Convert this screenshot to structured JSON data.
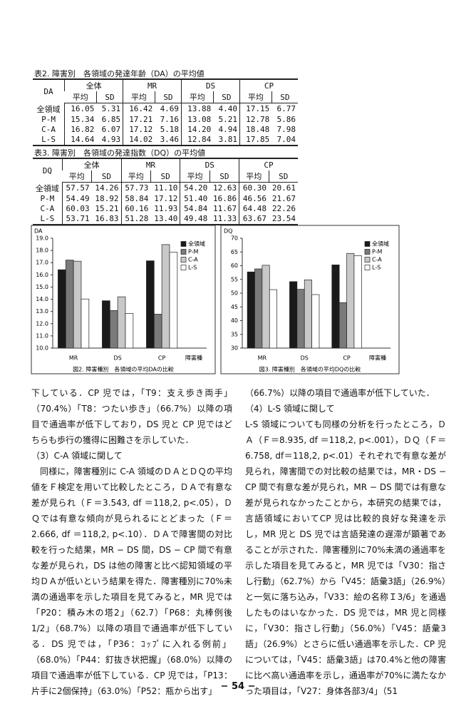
{
  "tables": [
    {
      "caption": "表2. 障害別　各領域の発達年齢（DA）の平均値",
      "corner": "DA",
      "groups": [
        "全体",
        "MR",
        "DS",
        "CP"
      ],
      "sub": [
        "平均",
        "SD"
      ],
      "rows": [
        [
          "全領域",
          "16.05",
          "5.31",
          "16.42",
          "4.69",
          "13.88",
          "4.40",
          "17.15",
          "6.77"
        ],
        [
          "P-M",
          "15.34",
          "6.85",
          "17.21",
          "7.16",
          "13.08",
          "5.21",
          "12.78",
          "5.86"
        ],
        [
          "C-A",
          "16.82",
          "6.07",
          "17.12",
          "5.18",
          "14.20",
          "4.94",
          "18.48",
          "7.98"
        ],
        [
          "L-S",
          "14.64",
          "4.93",
          "14.02",
          "3.46",
          "12.84",
          "3.81",
          "17.85",
          "7.04"
        ]
      ]
    },
    {
      "caption": "表3. 障害別　各領域の発達指数（DQ）の平均値",
      "corner": "DQ",
      "groups": [
        "全体",
        "MR",
        "DS",
        "CP"
      ],
      "sub": [
        "平均",
        "SD"
      ],
      "rows": [
        [
          "全領域",
          "57.57",
          "14.26",
          "57.73",
          "11.10",
          "54.20",
          "12.63",
          "60.30",
          "20.61"
        ],
        [
          "P-M",
          "54.49",
          "18.92",
          "58.84",
          "17.12",
          "51.40",
          "16.86",
          "46.56",
          "21.67"
        ],
        [
          "C-A",
          "60.03",
          "15.21",
          "60.16",
          "11.93",
          "54.84",
          "11.67",
          "64.48",
          "22.26"
        ],
        [
          "L-S",
          "53.71",
          "16.83",
          "51.28",
          "13.40",
          "49.48",
          "11.33",
          "63.67",
          "23.54"
        ]
      ]
    }
  ],
  "chart_data": [
    {
      "type": "bar",
      "title": "図2. 障害種別　各領域の平均DAの比較",
      "y_label": "DA",
      "x_label": "障害種",
      "categories": [
        "MR",
        "DS",
        "CP"
      ],
      "series": [
        {
          "name": "全領域",
          "color": "#1a1a1a",
          "values": [
            16.42,
            13.88,
            17.15
          ]
        },
        {
          "name": "P-M",
          "color": "#7a7a7a",
          "values": [
            17.21,
            13.08,
            12.78
          ]
        },
        {
          "name": "C-A",
          "color": "#c8c8c8",
          "values": [
            17.12,
            14.2,
            18.48
          ]
        },
        {
          "name": "L-S",
          "color": "#ffffff",
          "values": [
            14.02,
            12.84,
            17.85
          ]
        }
      ],
      "ylim": [
        10,
        19
      ],
      "yticks": [
        {
          "value": 10,
          "label": "10.0"
        },
        {
          "value": 11,
          "label": "11.0"
        },
        {
          "value": 12,
          "label": "12.0"
        },
        {
          "value": 13,
          "label": "13.0"
        },
        {
          "value": 14,
          "label": "14.0"
        },
        {
          "value": 15,
          "label": "15.0"
        },
        {
          "value": 16,
          "label": "16.0"
        },
        {
          "value": 17,
          "label": "17.0"
        },
        {
          "value": 18,
          "label": "18.0"
        },
        {
          "value": 19,
          "label": "19.0"
        }
      ],
      "legend": "top-right"
    },
    {
      "type": "bar",
      "title": "図3. 障害種別　各領域の平均DQの比較",
      "y_label": "DQ",
      "x_label": "障害種",
      "categories": [
        "MR",
        "DS",
        "CP"
      ],
      "series": [
        {
          "name": "全領域",
          "color": "#1a1a1a",
          "values": [
            57.73,
            54.2,
            60.3
          ]
        },
        {
          "name": "P-M",
          "color": "#7a7a7a",
          "values": [
            58.84,
            51.4,
            46.56
          ]
        },
        {
          "name": "C-A",
          "color": "#c8c8c8",
          "values": [
            60.16,
            54.84,
            64.48
          ]
        },
        {
          "name": "L-S",
          "color": "#ffffff",
          "values": [
            51.28,
            49.48,
            63.67
          ]
        }
      ],
      "ylim": [
        30,
        70
      ],
      "yticks": [
        30,
        35,
        40,
        45,
        50,
        55,
        60,
        65,
        70
      ],
      "legend": "top-right"
    }
  ],
  "body": {
    "left": [
      "下している．CP 児では，「T9：支え歩き両手」（70.4%）「T8：つたい歩き」（66.7%）以降の項目で通過率が低下しており，DS 児と CP 児ではどちらも歩行の獲得に困難さを示していた．",
      "（3）C-A 領域に関して",
      "同様に，障害種別に C-A 領域のＤＡとＤＱの平均値をＦ検定を用いて比較したところ，ＤＡで有意な差が見られ（Ｆ＝3.543, df ＝118,2, p<.05），ＤＱでは有意な傾向が見られるにとどまった（Ｆ＝2.666, df ＝118,2, p<.10）．ＤＡで障害間の対比較を行った結果，MR − DS 間，DS − CP 間で有意な差が見られ，DS は他の障害と比べ認知領域の平均ＤＡが低いという結果を得た．障害種別に70%未満の通過率を示した項目を見てみると，MR 児では「P20：積み木の塔2」（62.7）「P68：丸棒例後1/2」（68.7%）以降の項目で通過率が低下している．DS 児では，「P36：ｺｯﾌﾟに入れる例前」（68.0%）「P44：釘抜き状把握」（68.0%）以降の項目で通過率が低下している．CP 児では，「P13：片手に2個保持」（63.0%）「P52：瓶から出す」"
    ],
    "right": [
      "（66.7%）以降の項目で通過率が低下していた．",
      "（4）L-S 領域に関して",
      "L-S 領域についても同様の分析を行ったところ，ＤＡ（Ｆ＝8.935, df ＝118,2, p<.001），ＤＱ（Ｆ＝6.758, df＝118,2, p<.01）それぞれで有意な差が見られ，障害間での対比較の結果では，MR・DS − CP 間で有意な差が見られ，MR − DS 間では有意な差が見られなかったことから，本研究の結果では，言語領域においてCP 児は比較的良好な発達を示し，MR 児と DS 児では言語発達の遅滞が顕著であることが示された．障害種別に70%未満の通過率を示した項目を見てみると，MR 児では「V30：指さし行動」（62.7%）から「V45：語彙3語」（26.9%）と一気に落ち込み，「V33：絵の名称Ｉ3/6」を通過したものはいなかった．DS 児では，MR 児と同様に，「V30：指さし行動」（56.0%）「V45：語彙3語」（26.9%）とさらに低い通過率を示した．CP 児については，「V45：語彙3語」は70.4%と他の障害に比べ高い通過率を示し，通過率が70%に満たなかった項目は，「V27：身体各部3/4」（51"
    ]
  },
  "page_number": "− 54 −"
}
